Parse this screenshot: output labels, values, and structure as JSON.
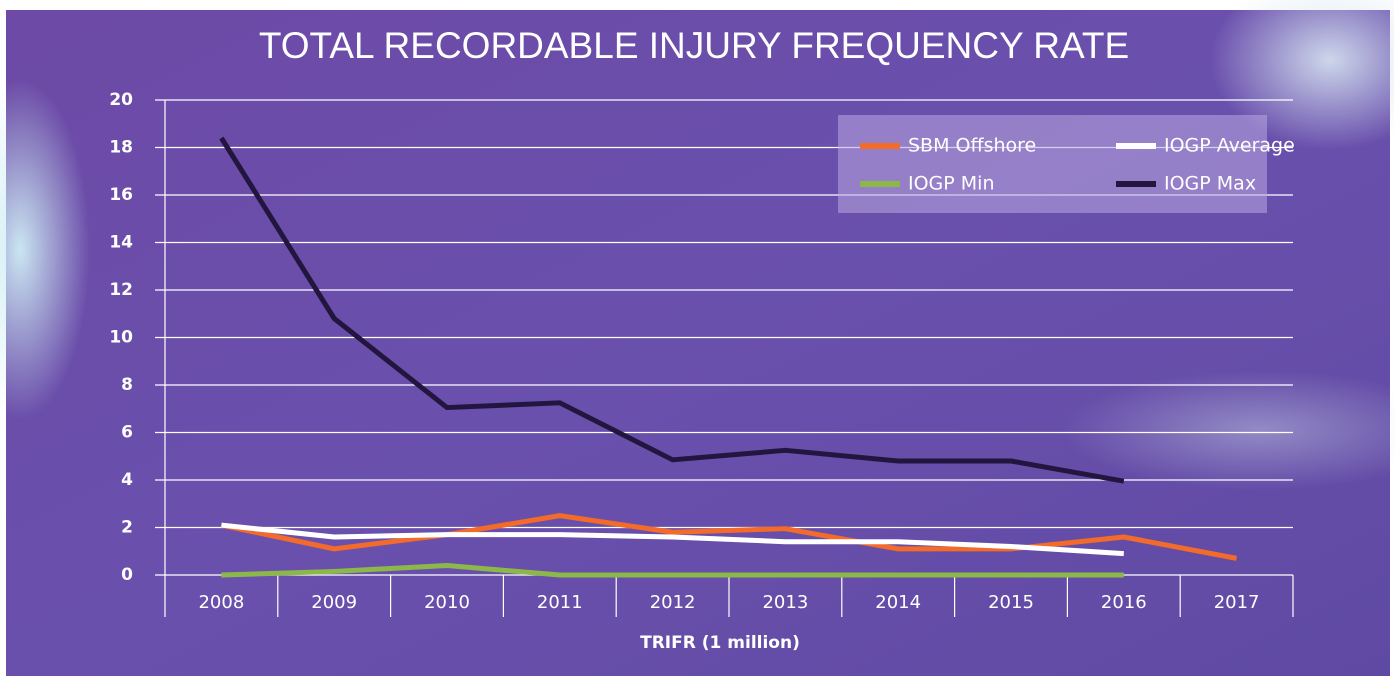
{
  "chart_data": {
    "type": "line",
    "title": "TOTAL RECORDABLE INJURY FREQUENCY RATE",
    "x_label": "TRIFR (1 million)",
    "categories": [
      "2008",
      "2009",
      "2010",
      "2011",
      "2012",
      "2013",
      "2014",
      "2015",
      "2016",
      "2017"
    ],
    "series": [
      {
        "name": "SBM Offshore",
        "color": "#f26b2a",
        "values": [
          2.1,
          1.1,
          1.7,
          2.5,
          1.8,
          1.95,
          1.1,
          1.1,
          1.6,
          0.7
        ]
      },
      {
        "name": "IOGP Average",
        "color": "#ffffff",
        "values": [
          2.1,
          1.6,
          1.7,
          1.7,
          1.6,
          1.4,
          1.4,
          1.2,
          0.9,
          null
        ]
      },
      {
        "name": "IOGP Min",
        "color": "#8cb84a",
        "values": [
          0,
          0.15,
          0.4,
          0,
          0,
          0,
          0,
          0,
          0,
          null
        ]
      },
      {
        "name": "IOGP Max",
        "color": "#22163f",
        "values": [
          18.4,
          10.8,
          7.05,
          7.25,
          4.85,
          5.25,
          4.8,
          4.8,
          3.95,
          null
        ]
      }
    ],
    "ylim": [
      0,
      20
    ],
    "yticks": [
      0,
      2,
      4,
      6,
      8,
      10,
      12,
      14,
      16,
      18,
      20
    ],
    "grid": true,
    "legend": "top-right"
  }
}
